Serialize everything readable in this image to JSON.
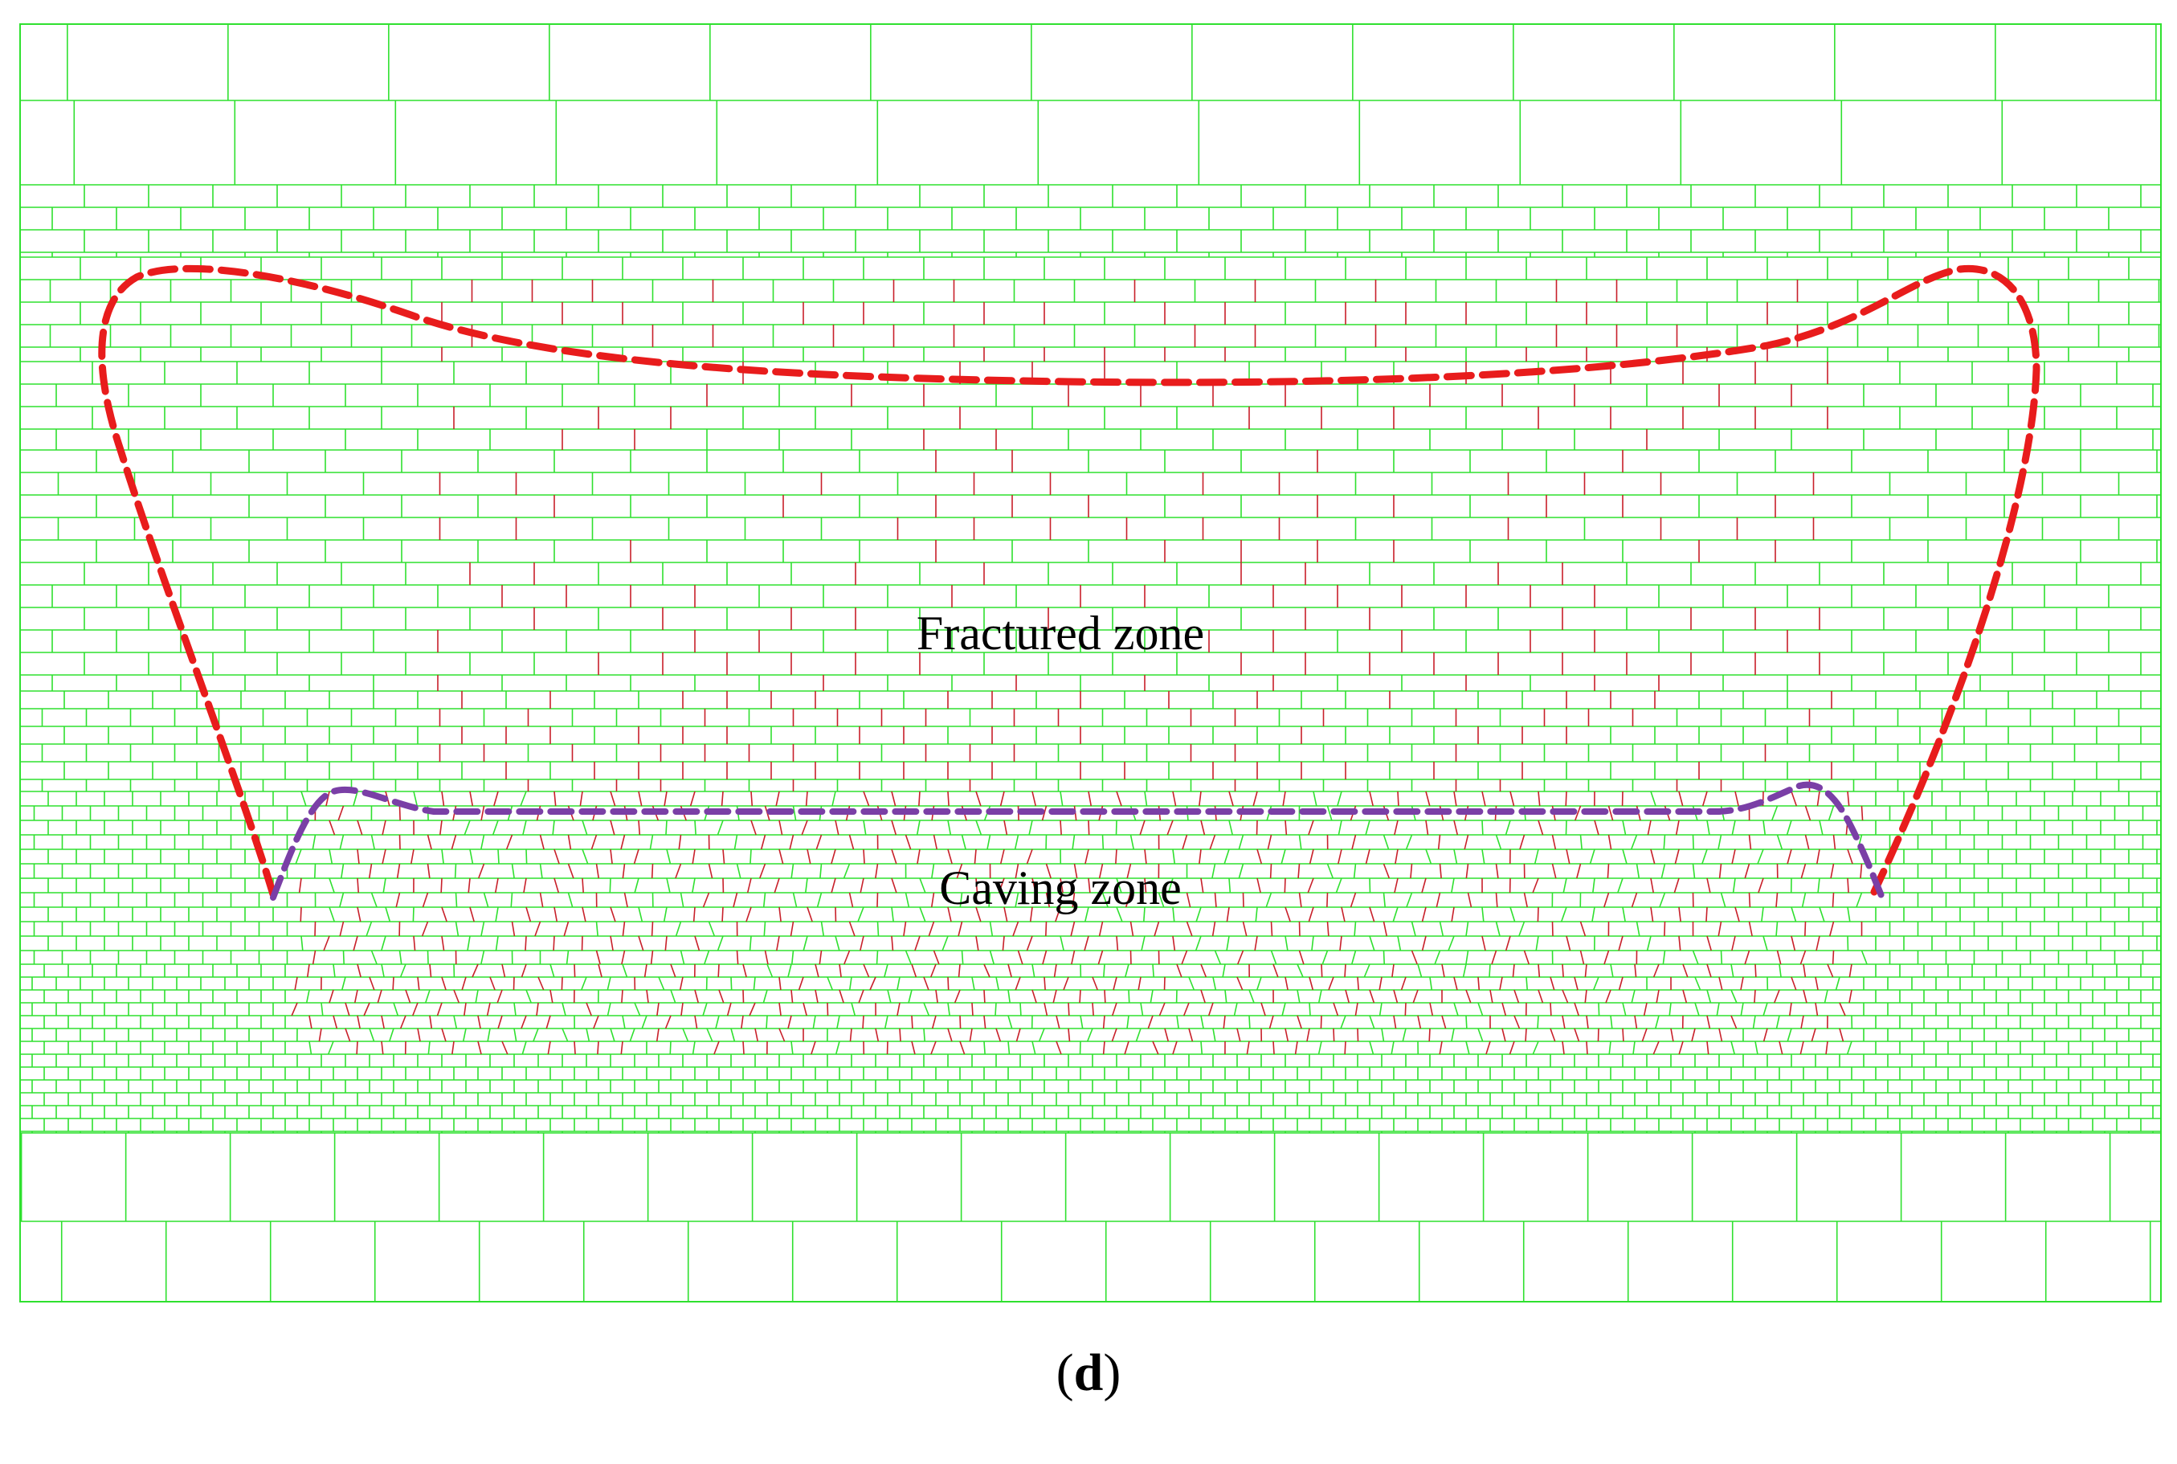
{
  "figure": {
    "panel_label_open": "(",
    "panel_label_letter": "d",
    "panel_label_close": ")",
    "zones": {
      "fractured_zone_label": "Fractured zone",
      "caving_zone_label": "Caving zone"
    },
    "colors": {
      "block_edge": "#2fe02f",
      "damaged_joint": "#c8202a",
      "fractured_zone_boundary": "#e81c1c",
      "caving_zone_boundary": "#7a3fa6",
      "background": "#ffffff"
    },
    "legend": "none"
  }
}
